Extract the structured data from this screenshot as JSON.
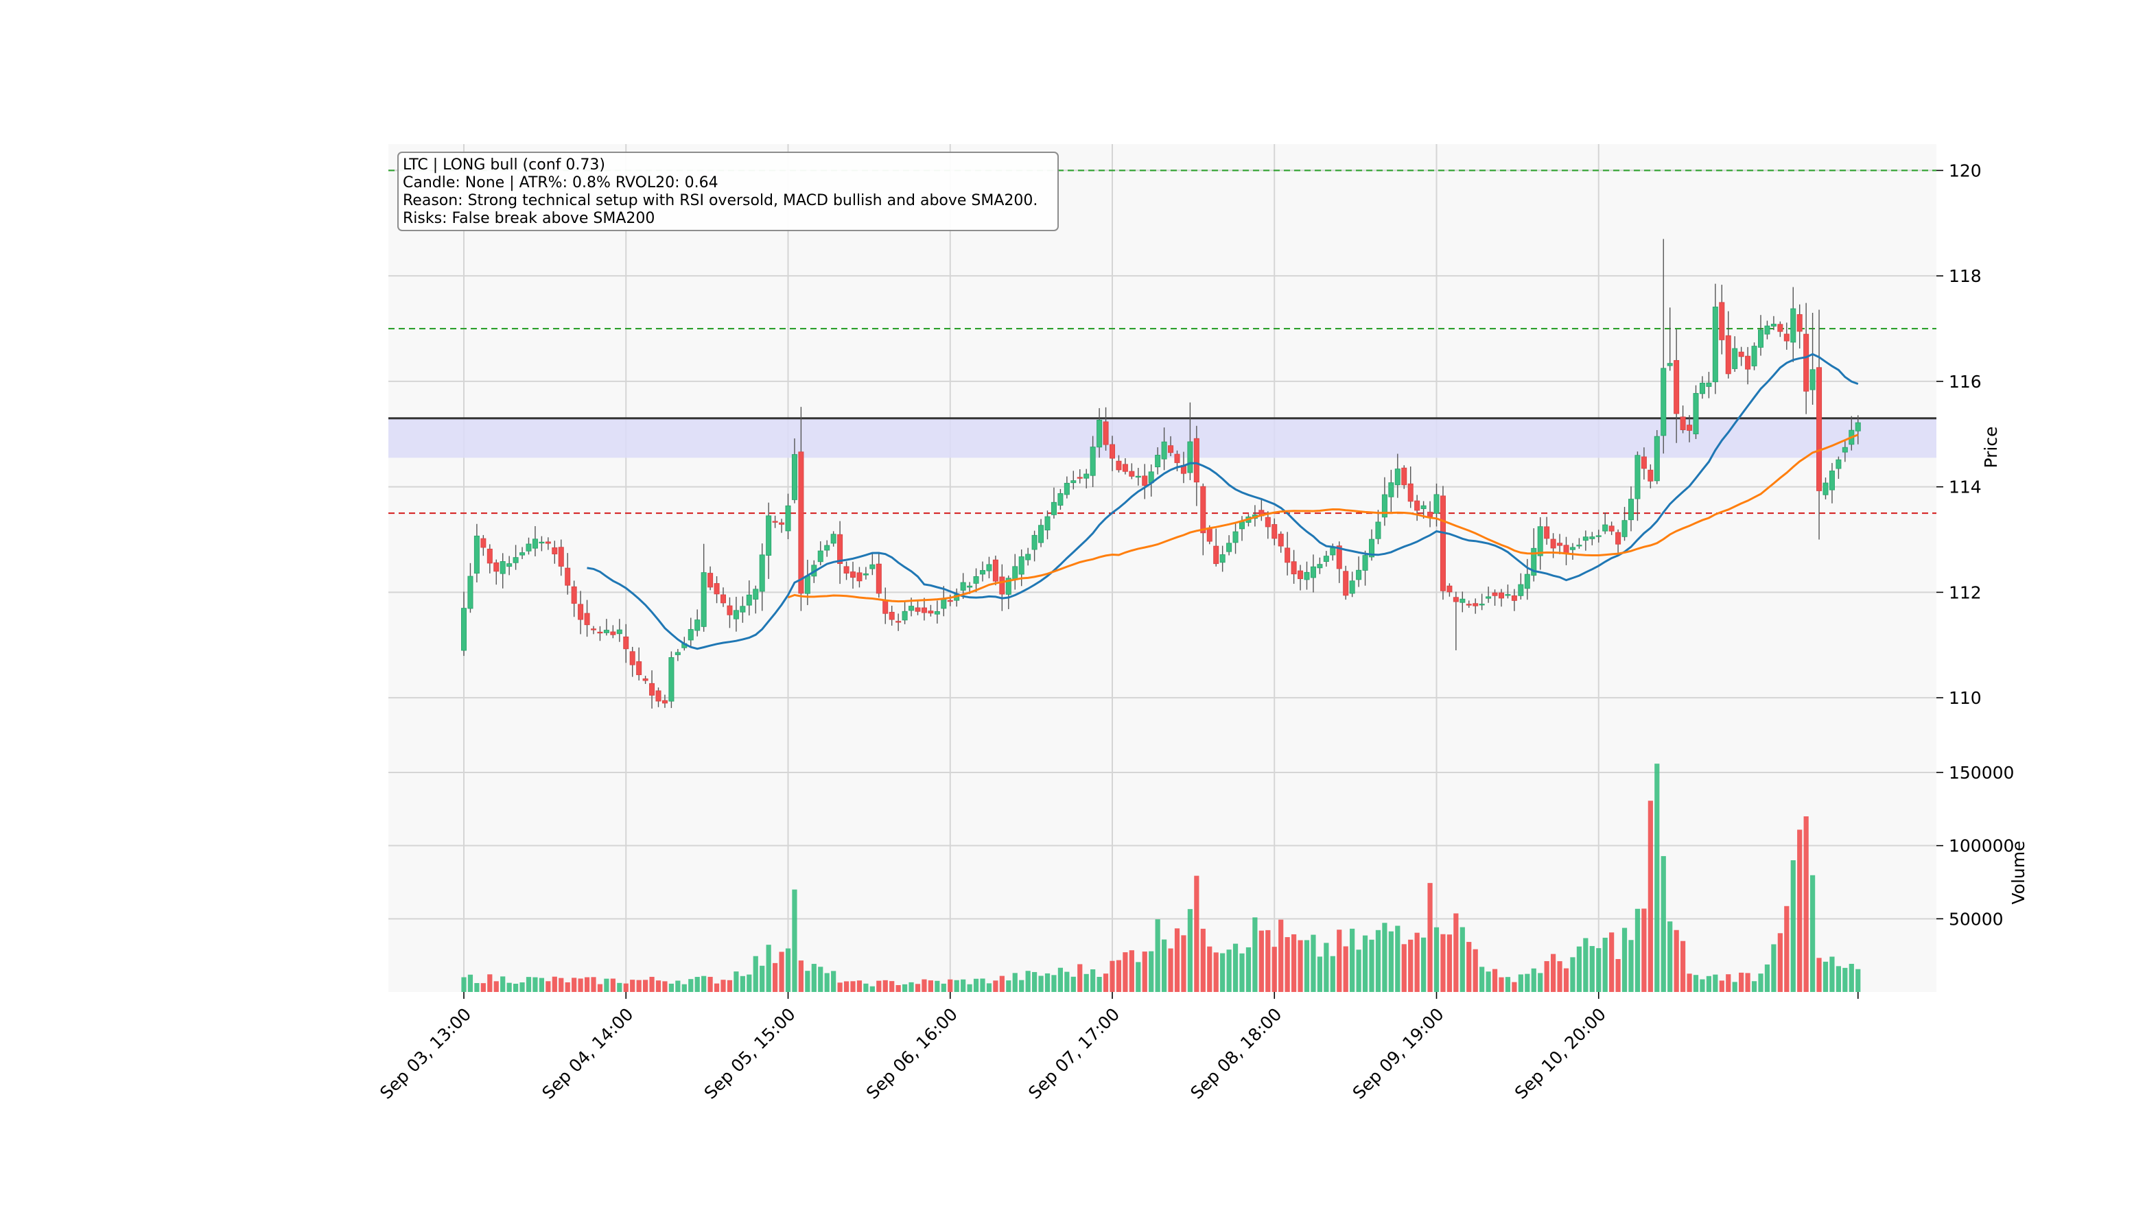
{
  "annotation": {
    "line1": "LTC  |  LONG  bull  (conf 0.73)",
    "line2": "Candle: None  |  ATR%: 0.8%  RVOL20: 0.64",
    "line3": "Reason: Strong technical setup with RSI oversold, MACD bullish and above SMA200.",
    "line4": "Risks: False break above SMA200"
  },
  "colors": {
    "up": "#26a269",
    "up_fill": "#3cbf82",
    "down": "#f05050",
    "sma_fast": "#1f77b4",
    "sma_slow": "#ff7f0e",
    "target": "#2ca02c",
    "stop": "#d62728",
    "entry": "#333333",
    "zone": "#dcdcf8",
    "panel_bg": "#f8f8f8",
    "grid": "#d5d5d5"
  },
  "chart_data": [
    {
      "type": "candlestick",
      "ylabel": "Price",
      "ylim": [
        109.0,
        120.5
      ],
      "yticks": [
        110,
        112,
        114,
        116,
        118,
        120
      ],
      "x_tick_labels": [
        "Sep 03, 13:00",
        "Sep 04, 14:00",
        "Sep 05, 15:00",
        "Sep 06, 16:00",
        "Sep 07, 17:00",
        "Sep 08, 18:00",
        "Sep 09, 19:00",
        "Sep 10, 20:00"
      ],
      "bars_per_tick": 25,
      "levels": {
        "entry": 115.3,
        "zone": [
          114.55,
          115.3
        ],
        "stop": 113.5,
        "target1": 117.0,
        "target2": 120.0
      },
      "anchors": [
        [
          0,
          111.7
        ],
        [
          2,
          113.0
        ],
        [
          5,
          112.4
        ],
        [
          9,
          112.8
        ],
        [
          12,
          113.0
        ],
        [
          14,
          112.8
        ],
        [
          17,
          111.8
        ],
        [
          19,
          111.3
        ],
        [
          24,
          111.2
        ],
        [
          27,
          110.4
        ],
        [
          30,
          110.0
        ],
        [
          31,
          109.9
        ],
        [
          32,
          110.8
        ],
        [
          36,
          111.4
        ],
        [
          37,
          112.4
        ],
        [
          41,
          111.5
        ],
        [
          45,
          112.0
        ],
        [
          47,
          113.4
        ],
        [
          49,
          113.2
        ],
        [
          50,
          113.7
        ],
        [
          51,
          114.7
        ],
        [
          52,
          112.0
        ],
        [
          55,
          112.8
        ],
        [
          57,
          113.1
        ],
        [
          58,
          112.5
        ],
        [
          61,
          112.3
        ],
        [
          63,
          112.5
        ],
        [
          64,
          111.9
        ],
        [
          66,
          111.4
        ],
        [
          69,
          111.7
        ],
        [
          72,
          111.6
        ],
        [
          75,
          111.9
        ],
        [
          78,
          112.2
        ],
        [
          81,
          112.6
        ],
        [
          83,
          112.0
        ],
        [
          86,
          112.6
        ],
        [
          88,
          113.0
        ],
        [
          91,
          113.7
        ],
        [
          93,
          114.1
        ],
        [
          96,
          114.2
        ],
        [
          97,
          114.8
        ],
        [
          98,
          115.2
        ],
        [
          100,
          114.5
        ],
        [
          103,
          114.2
        ],
        [
          105,
          114.1
        ],
        [
          108,
          114.8
        ],
        [
          111,
          114.3
        ],
        [
          112,
          114.9
        ],
        [
          114,
          113.2
        ],
        [
          116,
          112.6
        ],
        [
          118,
          113.0
        ],
        [
          120,
          113.3
        ],
        [
          122,
          113.5
        ],
        [
          124,
          113.3
        ],
        [
          126,
          112.8
        ],
        [
          129,
          112.2
        ],
        [
          132,
          112.6
        ],
        [
          134,
          112.9
        ],
        [
          136,
          112.0
        ],
        [
          138,
          112.4
        ],
        [
          140,
          113.0
        ],
        [
          142,
          113.8
        ],
        [
          144,
          114.3
        ],
        [
          146,
          113.7
        ],
        [
          149,
          113.5
        ],
        [
          150,
          113.8
        ],
        [
          151,
          112.1
        ],
        [
          153,
          111.8
        ],
        [
          156,
          111.8
        ],
        [
          159,
          112.0
        ],
        [
          162,
          111.9
        ],
        [
          164,
          112.3
        ],
        [
          166,
          113.2
        ],
        [
          168,
          112.9
        ],
        [
          170,
          112.8
        ],
        [
          173,
          113.0
        ],
        [
          176,
          113.2
        ],
        [
          178,
          113.0
        ],
        [
          180,
          113.8
        ],
        [
          181,
          114.6
        ],
        [
          183,
          114.1
        ],
        [
          184,
          115.0
        ],
        [
          185,
          116.3
        ],
        [
          186,
          116.4
        ],
        [
          187,
          115.3
        ],
        [
          189,
          115.0
        ],
        [
          190,
          115.8
        ],
        [
          192,
          116.0
        ],
        [
          193,
          117.5
        ],
        [
          195,
          116.2
        ],
        [
          196,
          116.6
        ],
        [
          198,
          116.3
        ],
        [
          200,
          116.9
        ],
        [
          202,
          117.1
        ],
        [
          204,
          116.7
        ],
        [
          205,
          117.3
        ],
        [
          206,
          116.9
        ],
        [
          207,
          115.9
        ],
        [
          208,
          116.3
        ],
        [
          209,
          113.9
        ],
        [
          210,
          114.0
        ],
        [
          211,
          114.3
        ],
        [
          212,
          114.6
        ],
        [
          213,
          114.8
        ],
        [
          214,
          115.0
        ],
        [
          215,
          115.2
        ]
      ],
      "series": [
        {
          "name": "",
          "type": "sma",
          "period": 20
        },
        {
          "name": "",
          "type": "sma",
          "period": 50,
          "start": 50
        }
      ]
    },
    {
      "type": "bar",
      "ylabel": "Volume",
      "ylim": [
        0,
        165000
      ],
      "yticks": [
        50000,
        100000,
        150000
      ],
      "ytick_labels": [
        "50000",
        "100000",
        "150000"
      ],
      "volume_anchors": [
        [
          0,
          10000
        ],
        [
          20,
          8000
        ],
        [
          40,
          9000
        ],
        [
          48,
          28000
        ],
        [
          50,
          40000
        ],
        [
          51,
          70000
        ],
        [
          52,
          20000
        ],
        [
          60,
          6000
        ],
        [
          80,
          8000
        ],
        [
          100,
          18000
        ],
        [
          113,
          62000
        ],
        [
          116,
          38000
        ],
        [
          124,
          44000
        ],
        [
          130,
          30000
        ],
        [
          140,
          36000
        ],
        [
          150,
          64000
        ],
        [
          160,
          8000
        ],
        [
          180,
          40000
        ],
        [
          182,
          58000
        ],
        [
          184,
          156000
        ],
        [
          186,
          46000
        ],
        [
          190,
          10000
        ],
        [
          200,
          12000
        ],
        [
          205,
          90000
        ],
        [
          207,
          120000
        ],
        [
          209,
          22000
        ],
        [
          215,
          14000
        ]
      ]
    }
  ]
}
